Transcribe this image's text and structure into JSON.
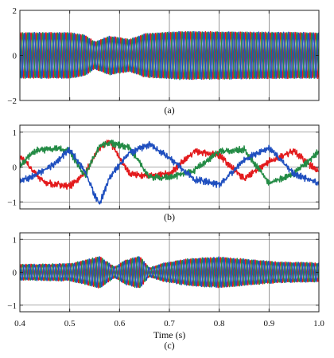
{
  "colors": {
    "red": "#e31a1c",
    "green": "#238b45",
    "blue": "#1f4fbf",
    "grid": "#555555",
    "frame": "#222222"
  },
  "figure": {
    "xlabel": "Time (s)",
    "x_ticks": [
      "0.4",
      "0.5",
      "0.6",
      "0.7",
      "0.8",
      "0.9",
      "1.0"
    ]
  },
  "chart_data": [
    {
      "type": "line",
      "caption": "(a)",
      "xlim": [
        0.4,
        1.0
      ],
      "ylim": [
        -2,
        2
      ],
      "y_ticks": [
        "2",
        "0",
        "−2"
      ],
      "grid": true,
      "series": [
        {
          "color": "red",
          "phase_deg": 0,
          "amplitude": 1.0,
          "waveform": "three-phase sinusoid, high frequency"
        },
        {
          "color": "green",
          "phase_deg": -120,
          "amplitude": 1.0,
          "waveform": "three-phase sinusoid, high frequency"
        },
        {
          "color": "blue",
          "phase_deg": 120,
          "amplitude": 1.0,
          "waveform": "three-phase sinusoid, high frequency"
        }
      ],
      "envelope": {
        "x": [
          0.4,
          0.5,
          0.53,
          0.55,
          0.58,
          0.62,
          0.65,
          0.68,
          0.72,
          1.0
        ],
        "amplitude": [
          1.0,
          1.0,
          0.9,
          0.6,
          0.85,
          0.7,
          0.95,
          1.0,
          1.05,
          1.0
        ]
      }
    },
    {
      "type": "line",
      "caption": "(b)",
      "xlim": [
        0.4,
        1.0
      ],
      "ylim": [
        -1.2,
        1.2
      ],
      "y_ticks": [
        "1",
        "0",
        "−1"
      ],
      "grid": true,
      "series": [
        {
          "color": "red",
          "x": [
            0.4,
            0.45,
            0.5,
            0.53,
            0.56,
            0.58,
            0.62,
            0.66,
            0.7,
            0.75,
            0.8,
            0.85,
            0.9,
            0.95,
            1.0
          ],
          "y": [
            0.3,
            -0.45,
            -0.55,
            -0.2,
            0.55,
            0.75,
            -0.2,
            -0.25,
            -0.2,
            0.45,
            0.35,
            -0.35,
            0.15,
            0.45,
            -0.15
          ]
        },
        {
          "color": "green",
          "x": [
            0.4,
            0.43,
            0.47,
            0.5,
            0.53,
            0.56,
            0.58,
            0.62,
            0.66,
            0.7,
            0.75,
            0.8,
            0.85,
            0.9,
            0.95,
            1.0
          ],
          "y": [
            0.05,
            0.45,
            0.55,
            0.45,
            -0.25,
            0.6,
            0.7,
            0.55,
            -0.3,
            -0.3,
            -0.1,
            0.45,
            0.5,
            -0.45,
            -0.2,
            0.45
          ]
        },
        {
          "color": "blue",
          "x": [
            0.4,
            0.43,
            0.47,
            0.5,
            0.53,
            0.55,
            0.56,
            0.58,
            0.62,
            0.66,
            0.7,
            0.75,
            0.8,
            0.85,
            0.9,
            0.95,
            1.0
          ],
          "y": [
            -0.4,
            -0.25,
            0.1,
            0.5,
            -0.1,
            -0.8,
            -1.05,
            -0.3,
            0.4,
            0.65,
            0.25,
            -0.35,
            -0.5,
            0.2,
            0.55,
            -0.2,
            -0.45
          ]
        }
      ]
    },
    {
      "type": "line",
      "caption": "(c)",
      "xlim": [
        0.4,
        1.0
      ],
      "ylim": [
        -1.2,
        1.2
      ],
      "y_ticks": [
        "1",
        "0",
        "−1"
      ],
      "grid": true,
      "series": [
        {
          "color": "red",
          "phase_deg": 0,
          "amplitude": 0.5,
          "waveform": "three-phase sinusoid, high frequency"
        },
        {
          "color": "green",
          "phase_deg": -120,
          "amplitude": 0.5,
          "waveform": "three-phase sinusoid, high frequency"
        },
        {
          "color": "blue",
          "phase_deg": 120,
          "amplitude": 0.5,
          "waveform": "three-phase sinusoid, high frequency"
        }
      ],
      "envelope": {
        "x": [
          0.4,
          0.5,
          0.53,
          0.56,
          0.59,
          0.61,
          0.64,
          0.66,
          0.69,
          0.74,
          0.8,
          0.86,
          0.92,
          1.0
        ],
        "amplitude": [
          0.45,
          0.5,
          0.7,
          0.95,
          0.3,
          0.7,
          0.95,
          0.25,
          0.55,
          0.8,
          0.9,
          0.75,
          0.6,
          0.55
        ]
      }
    }
  ]
}
